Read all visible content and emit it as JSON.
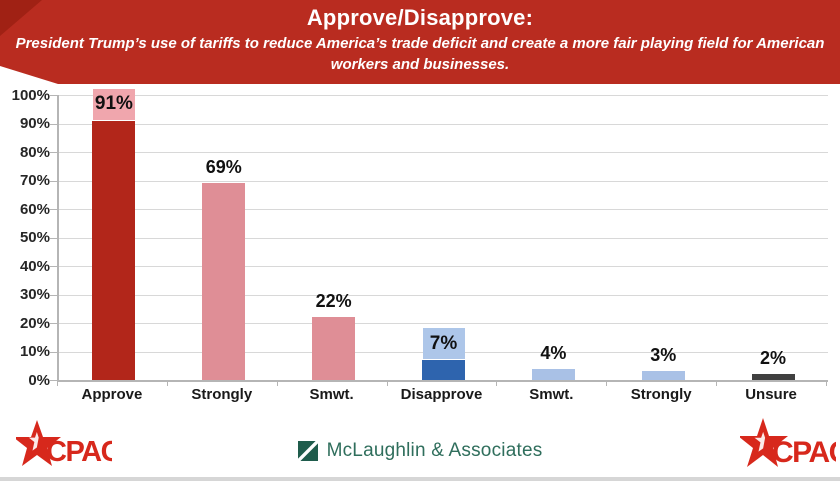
{
  "header": {
    "title": "Approve/Disapprove:",
    "subtitle_line1": "President Trump’s use of tariffs to reduce America’s trade deficit and create a more fair playing field for American",
    "subtitle_line2": "workers and businesses."
  },
  "chart_data": {
    "type": "bar",
    "title": "Approve/Disapprove: President Trump’s use of tariffs to reduce America’s trade deficit and create a more fair playing field for American workers and businesses.",
    "categories": [
      "Approve",
      "Strongly",
      "Smwt.",
      "Disapprove",
      "Smwt.",
      "Strongly",
      "Unsure"
    ],
    "values": [
      91,
      69,
      22,
      7,
      4,
      3,
      2
    ],
    "data_labels": [
      "91%",
      "69%",
      "22%",
      "7%",
      "4%",
      "3%",
      "2%"
    ],
    "bar_colors": [
      "#b2261a",
      "#df8e96",
      "#df8e96",
      "#2e64ae",
      "#a9c1e6",
      "#a9c1e6",
      "#404040"
    ],
    "label_backgrounds": [
      "#f0a6ad",
      null,
      null,
      "#adc6e9",
      null,
      null,
      null
    ],
    "xlabel": "",
    "ylabel": "",
    "ylim": [
      0,
      100
    ],
    "y_ticks": [
      "100%",
      "90%",
      "80%",
      "70%",
      "60%",
      "50%",
      "40%",
      "30%",
      "20%",
      "10%",
      "0%"
    ],
    "grid": true,
    "legend": "none"
  },
  "footer": {
    "cpac_label": "CPAC",
    "mclaughlin_label": "McLaughlin & Associates"
  },
  "colors": {
    "banner_red": "#b92c20",
    "banner_fold_red": "#a02114",
    "approve_dark_red": "#b2261a",
    "approve_pink": "#df8e96",
    "approve_label_bg": "#f0a6ad",
    "disapprove_dark_blue": "#2e64ae",
    "disapprove_light_blue": "#a9c1e6",
    "disapprove_label_bg": "#adc6e9",
    "unsure_gray": "#404040",
    "gridline_gray": "#d8d8d8",
    "axis_gray": "#b5b5b5",
    "cpac_red": "#d7281c",
    "mclaughlin_green": "#2f6e5c"
  }
}
